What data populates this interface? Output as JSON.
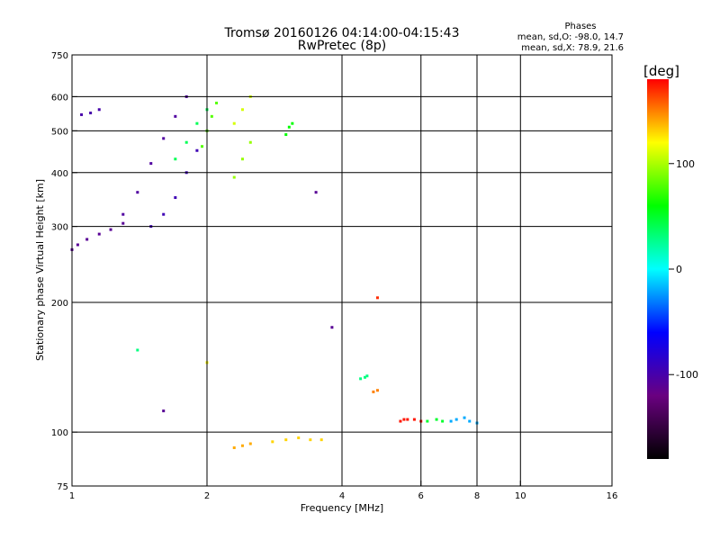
{
  "chart_data": {
    "type": "scatter",
    "title": "Tromsø 20160126 04:14:00-04:15:43",
    "subtitle": "RwPretec (8p)",
    "xlabel": "Frequency [MHz]",
    "ylabel": "Stationary phase Virtual Height [km]",
    "x_scale": "log",
    "y_scale": "log",
    "xlim": [
      1,
      16
    ],
    "ylim": [
      75,
      750
    ],
    "x_ticks": [
      1,
      2,
      4,
      6,
      8,
      10,
      16
    ],
    "y_ticks": [
      75,
      100,
      200,
      300,
      400,
      500,
      600,
      750
    ],
    "grid": true,
    "stats": {
      "heading": "Phases",
      "line_o": "mean, sd,O: -98.0, 14.7",
      "line_x": "mean, sd,X:  78.9, 21.6"
    },
    "colorbar": {
      "label": "[deg]",
      "ticks": [
        100,
        0,
        -100
      ],
      "range": [
        -180,
        180
      ],
      "colors": [
        "#000000",
        "#6a0080",
        "#0000ff",
        "#00ffff",
        "#00ff00",
        "#ffff00",
        "#ff0000"
      ]
    },
    "clusters": [
      {
        "x": [
          1.0,
          1.03,
          1.08,
          1.15,
          1.22,
          1.3
        ],
        "y": [
          265,
          272,
          280,
          288,
          295,
          305
        ],
        "phase": -110
      },
      {
        "x": [
          1.05,
          1.1,
          1.15
        ],
        "y": [
          545,
          550,
          560
        ],
        "phase": -100
      },
      {
        "x": [
          1.3,
          1.4,
          1.5,
          1.6,
          1.7,
          1.8
        ],
        "y": [
          320,
          360,
          420,
          480,
          540,
          600
        ],
        "phase": -105
      },
      {
        "x": [
          1.5,
          1.6,
          1.7,
          1.8,
          1.9
        ],
        "y": [
          300,
          320,
          350,
          400,
          450
        ],
        "phase": -95
      },
      {
        "x": [
          1.7,
          1.8,
          1.9,
          2.0
        ],
        "y": [
          430,
          470,
          520,
          560
        ],
        "phase": 40
      },
      {
        "x": [
          1.95,
          2.0,
          2.05,
          2.1
        ],
        "y": [
          460,
          500,
          540,
          580
        ],
        "phase": 80
      },
      {
        "x": [
          2.3,
          2.4,
          2.5
        ],
        "y": [
          390,
          430,
          470
        ],
        "phase": 95
      },
      {
        "x": [
          2.3,
          2.4,
          2.5
        ],
        "y": [
          520,
          560,
          600
        ],
        "phase": 110
      },
      {
        "x": [
          3.0,
          3.05,
          3.1
        ],
        "y": [
          490,
          510,
          520
        ],
        "phase": 60
      },
      {
        "x": [
          2.8,
          3.0,
          3.2,
          3.4,
          3.6
        ],
        "y": [
          95,
          96,
          97,
          96,
          96
        ],
        "phase": 130
      },
      {
        "x": [
          2.3,
          2.4,
          2.5
        ],
        "y": [
          92,
          93,
          94
        ],
        "phase": 140
      },
      {
        "x": [
          4.4,
          4.5,
          4.55
        ],
        "y": [
          133,
          134,
          135
        ],
        "phase": 30
      },
      {
        "x": [
          4.7,
          4.8
        ],
        "y": [
          124,
          125
        ],
        "phase": 150
      },
      {
        "x": [
          5.4,
          5.5,
          5.6,
          5.8,
          6.0
        ],
        "y": [
          106,
          107,
          107,
          107,
          106
        ],
        "phase": 175
      },
      {
        "x": [
          6.2,
          6.5,
          6.7
        ],
        "y": [
          106,
          107,
          106
        ],
        "phase": 50
      },
      {
        "x": [
          7.0,
          7.2,
          7.5,
          7.7,
          8.0
        ],
        "y": [
          106,
          107,
          108,
          106,
          105
        ],
        "phase": -20
      },
      {
        "x": [
          2.0
        ],
        "y": [
          145
        ],
        "phase": 120
      },
      {
        "x": [
          1.4
        ],
        "y": [
          155
        ],
        "phase": 30
      },
      {
        "x": [
          1.6
        ],
        "y": [
          112
        ],
        "phase": -110
      },
      {
        "x": [
          3.5
        ],
        "y": [
          360
        ],
        "phase": -110
      },
      {
        "x": [
          3.8
        ],
        "y": [
          175
        ],
        "phase": -110
      },
      {
        "x": [
          4.8
        ],
        "y": [
          205
        ],
        "phase": 170
      }
    ]
  }
}
